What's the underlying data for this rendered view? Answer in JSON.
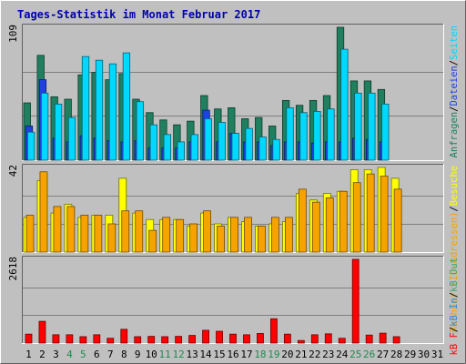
{
  "chart_data": [
    {
      "type": "bar",
      "title": "Tages-Statistik im Monat Februar 2017",
      "ymax_label": "109",
      "categories": [
        "1",
        "2",
        "3",
        "4",
        "5",
        "6",
        "7",
        "8",
        "9",
        "10",
        "11",
        "12",
        "13",
        "14",
        "15",
        "16",
        "17",
        "18",
        "19",
        "20",
        "21",
        "22",
        "23",
        "24",
        "25",
        "26",
        "27",
        "28",
        "29",
        "30",
        "31"
      ],
      "legend": [
        {
          "text": "Anfragen",
          "color": "#1f7f5f"
        },
        {
          "text": "Dateien",
          "color": "#2040e0"
        },
        {
          "text": "Seiten",
          "color": "#00d8ff"
        }
      ],
      "legend_separator": "/",
      "series": [
        {
          "name": "Anfragen",
          "color": "#1f7f5f",
          "values": [
            47,
            86,
            52,
            50,
            70,
            72,
            66,
            71,
            50,
            39,
            33,
            29,
            32,
            53,
            42,
            43,
            34,
            35,
            28,
            49,
            45,
            49,
            53,
            109,
            65,
            65,
            58,
            0,
            0,
            0,
            0
          ]
        },
        {
          "name": "Dateien",
          "color": "#2040e0",
          "values": [
            28,
            66,
            18,
            15,
            20,
            18,
            16,
            15,
            16,
            10,
            10,
            10,
            15,
            41,
            15,
            22,
            15,
            15,
            12,
            15,
            15,
            14,
            15,
            15,
            18,
            17,
            15,
            0,
            0,
            0,
            0
          ]
        },
        {
          "name": "Seiten",
          "color": "#00d8ff",
          "values": [
            23,
            55,
            46,
            35,
            85,
            82,
            79,
            88,
            48,
            29,
            21,
            15,
            21,
            34,
            31,
            22,
            26,
            19,
            17,
            43,
            39,
            40,
            42,
            91,
            55,
            55,
            46,
            0,
            0,
            0,
            0
          ]
        }
      ]
    },
    {
      "type": "bar",
      "ymax_label": "42",
      "categories": [
        "1",
        "2",
        "3",
        "4",
        "5",
        "6",
        "7",
        "8",
        "9",
        "10",
        "11",
        "12",
        "13",
        "14",
        "15",
        "16",
        "17",
        "18",
        "19",
        "20",
        "21",
        "22",
        "23",
        "24",
        "25",
        "26",
        "27",
        "28",
        "29",
        "30",
        "31"
      ],
      "legend": [
        {
          "text": "Rechner (IP-Adressen)",
          "color": "#f6a300"
        },
        {
          "text": "Besuche",
          "color": "#ffff00"
        }
      ],
      "legend_separator": "/",
      "series": [
        {
          "name": "Besuche",
          "color": "#ffff00",
          "values": [
            16,
            33,
            18,
            22,
            16,
            17,
            17,
            34,
            18,
            15,
            15,
            15,
            12,
            18,
            13,
            16,
            14,
            12,
            13,
            14,
            27,
            24,
            27,
            28,
            38,
            38,
            39,
            34,
            0,
            0,
            0
          ]
        },
        {
          "name": "Rechner (IP-Adressen)",
          "color": "#f6a300",
          "values": [
            17,
            37,
            21,
            21,
            17,
            17,
            13,
            19,
            19,
            10,
            16,
            15,
            13,
            19,
            12,
            16,
            16,
            12,
            16,
            16,
            29,
            23,
            25,
            28,
            32,
            36,
            35,
            29,
            0,
            0,
            0
          ]
        }
      ]
    },
    {
      "type": "bar",
      "ymax_label": "2618",
      "categories": [
        "1",
        "2",
        "3",
        "4",
        "5",
        "6",
        "7",
        "8",
        "9",
        "10",
        "11",
        "12",
        "13",
        "14",
        "15",
        "16",
        "17",
        "18",
        "19",
        "20",
        "21",
        "22",
        "23",
        "24",
        "25",
        "26",
        "27",
        "28",
        "29",
        "30",
        "31"
      ],
      "legend": [
        {
          "text": "kB F",
          "color": "#ff0000"
        },
        {
          "text": "kB In",
          "color": "#2a8ae0"
        },
        {
          "text": "kB Out",
          "color": "#3aa66a"
        }
      ],
      "legend_separator": "/",
      "series": [
        {
          "name": "kB F",
          "color": "#ff0000",
          "values": [
            280,
            680,
            260,
            260,
            200,
            260,
            150,
            430,
            200,
            210,
            200,
            210,
            240,
            400,
            370,
            280,
            260,
            300,
            760,
            280,
            80,
            260,
            290,
            150,
            2618,
            250,
            310,
            200,
            0,
            0,
            0
          ]
        }
      ]
    }
  ],
  "x_labels": [
    {
      "text": "1",
      "color": "#000000"
    },
    {
      "text": "2",
      "color": "#000000"
    },
    {
      "text": "3",
      "color": "#000000"
    },
    {
      "text": "4",
      "color": "#1e8a4e"
    },
    {
      "text": "5",
      "color": "#1e8a4e"
    },
    {
      "text": "6",
      "color": "#000000"
    },
    {
      "text": "7",
      "color": "#000000"
    },
    {
      "text": "8",
      "color": "#000000"
    },
    {
      "text": "9",
      "color": "#000000"
    },
    {
      "text": "10",
      "color": "#000000"
    },
    {
      "text": "11",
      "color": "#1e8a4e"
    },
    {
      "text": "12",
      "color": "#1e8a4e"
    },
    {
      "text": "13",
      "color": "#000000"
    },
    {
      "text": "14",
      "color": "#000000"
    },
    {
      "text": "15",
      "color": "#000000"
    },
    {
      "text": "16",
      "color": "#000000"
    },
    {
      "text": "17",
      "color": "#000000"
    },
    {
      "text": "18",
      "color": "#1e8a4e"
    },
    {
      "text": "19",
      "color": "#1e8a4e"
    },
    {
      "text": "20",
      "color": "#000000"
    },
    {
      "text": "21",
      "color": "#000000"
    },
    {
      "text": "22",
      "color": "#000000"
    },
    {
      "text": "23",
      "color": "#000000"
    },
    {
      "text": "24",
      "color": "#000000"
    },
    {
      "text": "25",
      "color": "#1e8a4e"
    },
    {
      "text": "26",
      "color": "#1e8a4e"
    },
    {
      "text": "27",
      "color": "#000000"
    },
    {
      "text": "28",
      "color": "#000000"
    },
    {
      "text": "29",
      "color": "#000000"
    },
    {
      "text": "30",
      "color": "#000000"
    },
    {
      "text": "31",
      "color": "#000000"
    }
  ],
  "colors": {
    "background": "#c0c0c0",
    "title": "#0000b0",
    "gridline": "#808080",
    "label": "#000000"
  }
}
